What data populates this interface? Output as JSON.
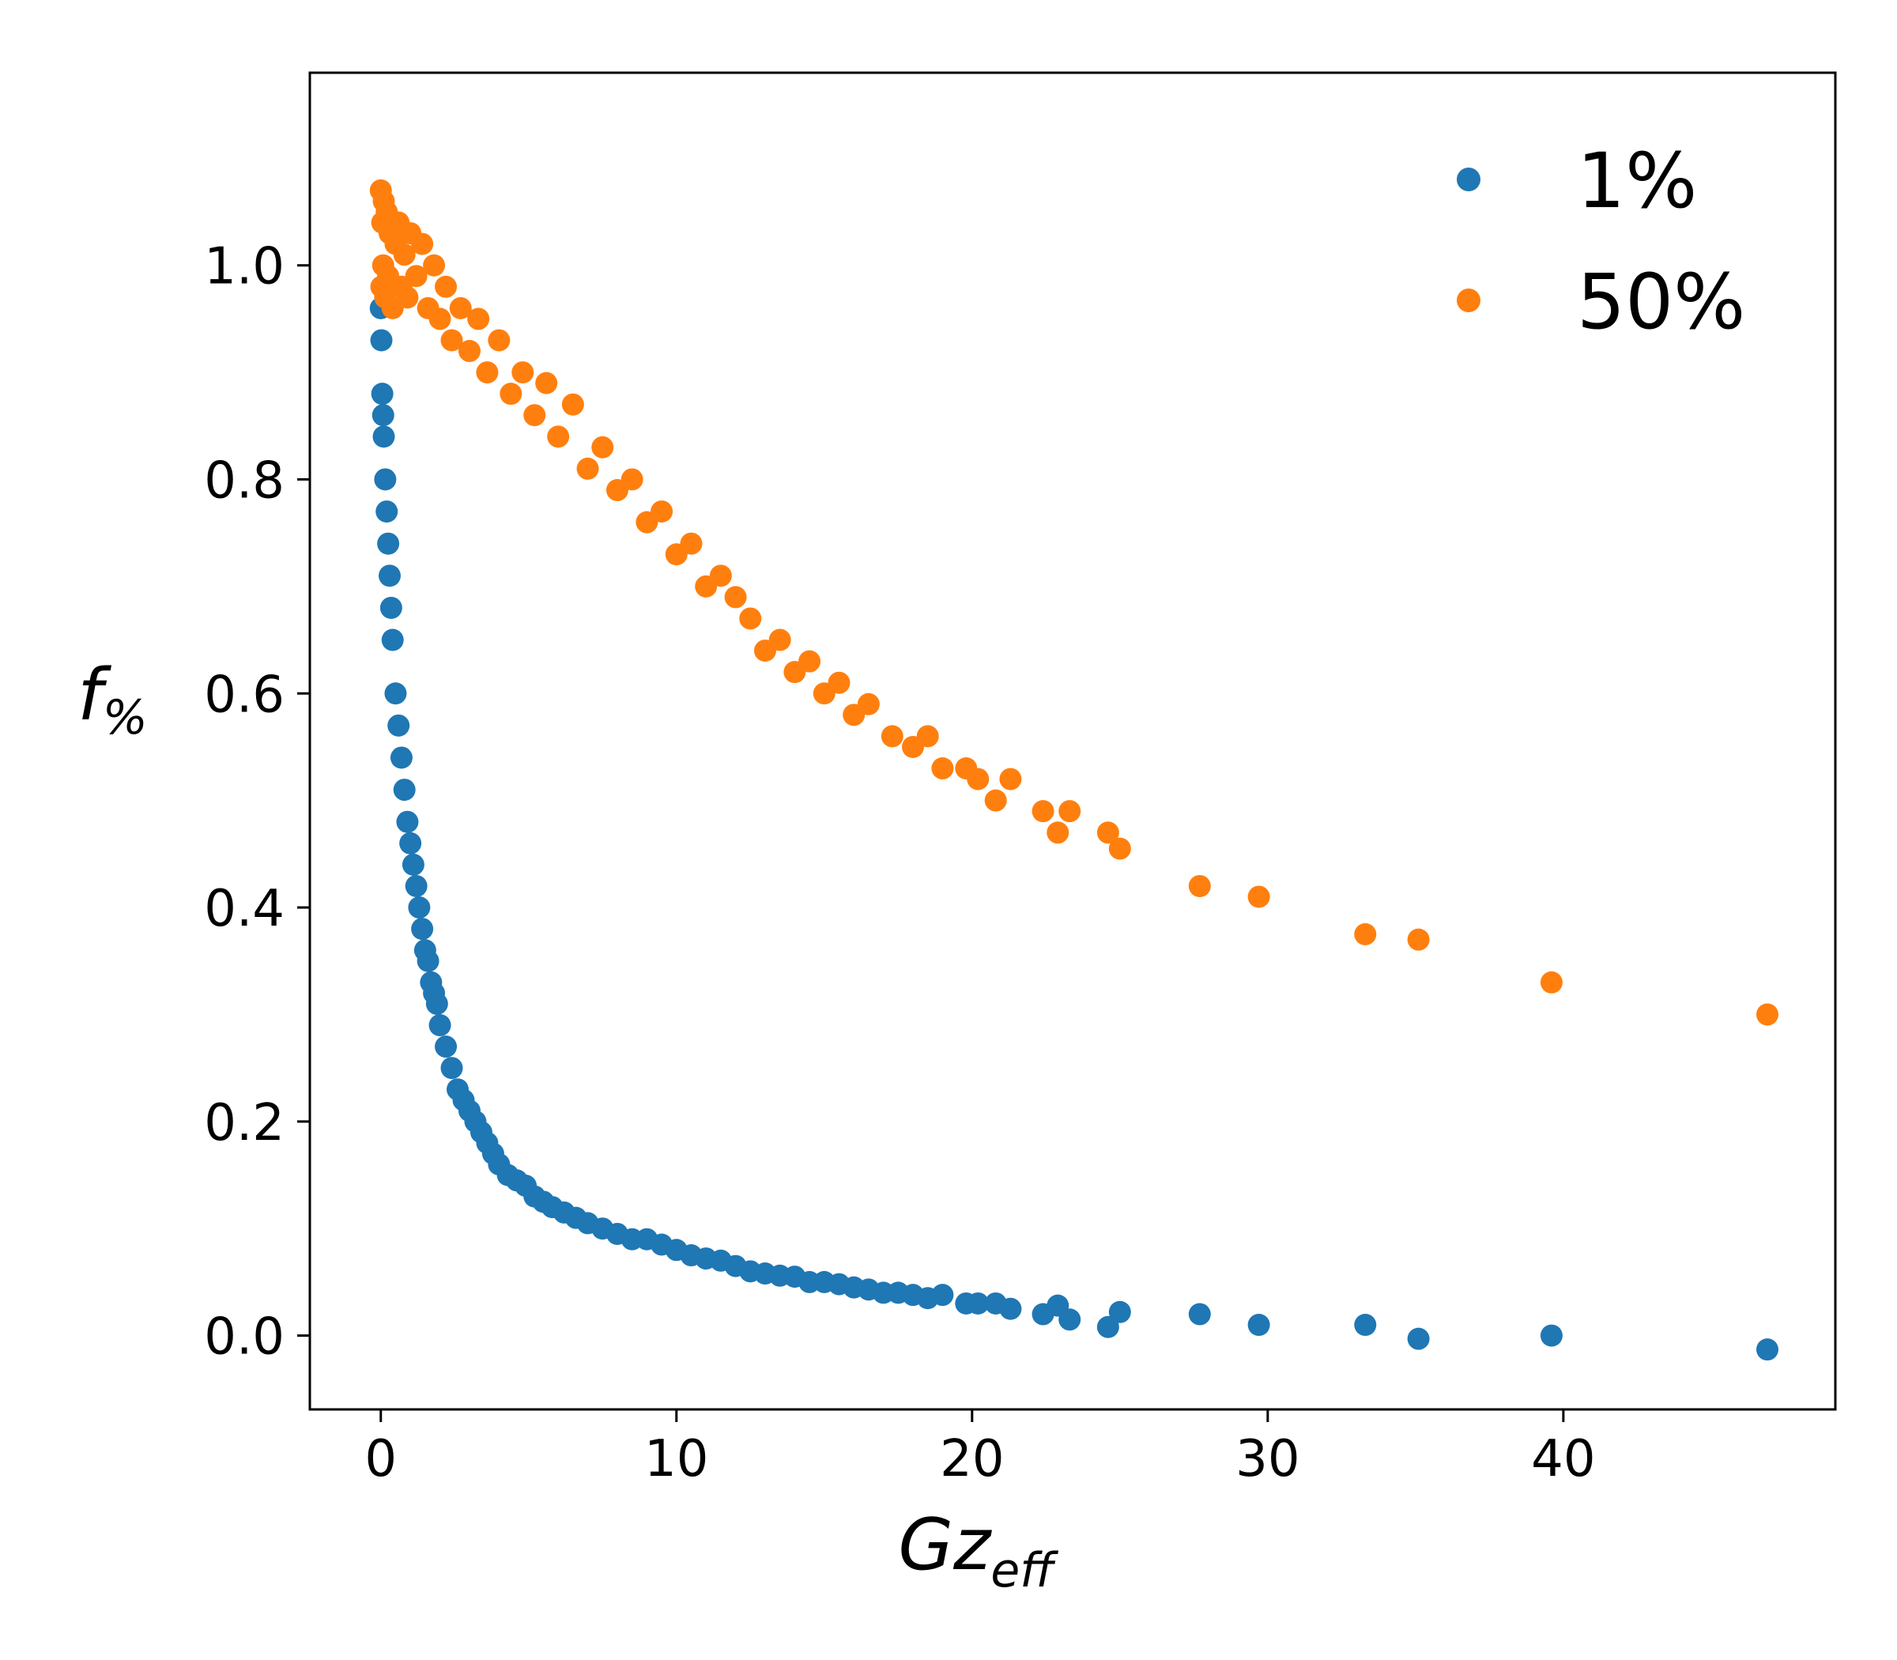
{
  "chart_data": {
    "type": "scatter",
    "xlabel": {
      "main": "Gz",
      "sub": "eff"
    },
    "ylabel": {
      "main": "f",
      "sub": "%"
    },
    "xlim": [
      -2.4,
      49.2
    ],
    "ylim": [
      -0.069,
      1.18
    ],
    "x_ticks": [
      0,
      10,
      20,
      30,
      40
    ],
    "x_tick_labels": [
      "0",
      "10",
      "20",
      "30",
      "40"
    ],
    "y_ticks": [
      0.0,
      0.2,
      0.4,
      0.6,
      0.8,
      1.0
    ],
    "y_tick_labels": [
      "0.0",
      "0.2",
      "0.4",
      "0.6",
      "0.8",
      "1.0"
    ],
    "grid": false,
    "legend_position": "top-right",
    "series": [
      {
        "name": "1%",
        "color": "#1f77b4",
        "x": [
          0.0,
          0.02,
          0.05,
          0.08,
          0.1,
          0.15,
          0.2,
          0.25,
          0.3,
          0.35,
          0.4,
          0.5,
          0.6,
          0.7,
          0.8,
          0.9,
          1.0,
          1.1,
          1.2,
          1.3,
          1.4,
          1.5,
          1.6,
          1.7,
          1.8,
          1.9,
          2.0,
          2.2,
          2.4,
          2.6,
          2.8,
          3.0,
          3.2,
          3.4,
          3.6,
          3.8,
          4.0,
          4.3,
          4.6,
          4.9,
          5.2,
          5.5,
          5.8,
          6.2,
          6.6,
          7.0,
          7.5,
          8.0,
          8.5,
          9.0,
          9.5,
          10.0,
          10.5,
          11.0,
          11.5,
          12.0,
          12.5,
          13.0,
          13.5,
          14.0,
          14.5,
          15.0,
          15.5,
          16.0,
          16.5,
          17.0,
          17.5,
          18.0,
          18.5,
          19.0,
          19.8,
          20.2,
          20.8,
          21.3,
          22.4,
          22.9,
          23.3,
          24.6,
          25.0,
          27.7,
          29.7,
          33.3,
          35.1,
          39.6,
          46.9
        ],
        "y": [
          0.96,
          0.93,
          0.88,
          0.86,
          0.84,
          0.8,
          0.77,
          0.74,
          0.71,
          0.68,
          0.65,
          0.6,
          0.57,
          0.54,
          0.51,
          0.48,
          0.46,
          0.44,
          0.42,
          0.4,
          0.38,
          0.36,
          0.35,
          0.33,
          0.32,
          0.31,
          0.29,
          0.27,
          0.25,
          0.23,
          0.22,
          0.21,
          0.2,
          0.19,
          0.18,
          0.17,
          0.16,
          0.15,
          0.145,
          0.14,
          0.13,
          0.125,
          0.12,
          0.115,
          0.11,
          0.105,
          0.1,
          0.095,
          0.09,
          0.09,
          0.085,
          0.08,
          0.075,
          0.072,
          0.07,
          0.065,
          0.06,
          0.058,
          0.056,
          0.055,
          0.05,
          0.05,
          0.048,
          0.045,
          0.043,
          0.04,
          0.04,
          0.038,
          0.035,
          0.038,
          0.03,
          0.03,
          0.03,
          0.025,
          0.02,
          0.028,
          0.015,
          0.008,
          0.022,
          0.02,
          0.01,
          0.01,
          -0.003,
          0.0,
          -0.013
        ]
      },
      {
        "name": "50%",
        "color": "#ff7f0e",
        "x": [
          0.0,
          0.02,
          0.05,
          0.08,
          0.1,
          0.15,
          0.2,
          0.25,
          0.3,
          0.4,
          0.5,
          0.6,
          0.7,
          0.8,
          0.9,
          1.0,
          1.2,
          1.4,
          1.6,
          1.8,
          2.0,
          2.2,
          2.4,
          2.7,
          3.0,
          3.3,
          3.6,
          4.0,
          4.4,
          4.8,
          5.2,
          5.6,
          6.0,
          6.5,
          7.0,
          7.5,
          8.0,
          8.5,
          9.0,
          9.5,
          10.0,
          10.5,
          11.0,
          11.5,
          12.0,
          12.5,
          13.0,
          13.5,
          14.0,
          14.5,
          15.0,
          15.5,
          16.0,
          16.5,
          17.3,
          18.0,
          18.5,
          19.0,
          19.8,
          20.2,
          20.8,
          21.3,
          22.4,
          22.9,
          23.3,
          24.6,
          25.0,
          27.7,
          29.7,
          33.3,
          35.1,
          39.6,
          46.9
        ],
        "y": [
          1.07,
          0.98,
          1.04,
          1.0,
          1.06,
          0.97,
          1.05,
          0.99,
          1.03,
          0.96,
          1.02,
          1.04,
          0.98,
          1.01,
          0.97,
          1.03,
          0.99,
          1.02,
          0.96,
          1.0,
          0.95,
          0.98,
          0.93,
          0.96,
          0.92,
          0.95,
          0.9,
          0.93,
          0.88,
          0.9,
          0.86,
          0.89,
          0.84,
          0.87,
          0.81,
          0.83,
          0.79,
          0.8,
          0.76,
          0.77,
          0.73,
          0.74,
          0.7,
          0.71,
          0.69,
          0.67,
          0.64,
          0.65,
          0.62,
          0.63,
          0.6,
          0.61,
          0.58,
          0.59,
          0.56,
          0.55,
          0.56,
          0.53,
          0.53,
          0.52,
          0.5,
          0.52,
          0.49,
          0.47,
          0.49,
          0.47,
          0.455,
          0.42,
          0.41,
          0.375,
          0.37,
          0.33,
          0.3
        ]
      }
    ]
  }
}
